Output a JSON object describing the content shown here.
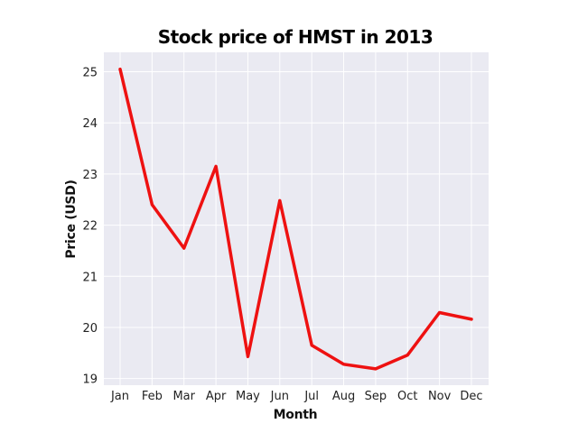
{
  "chart_data": {
    "type": "line",
    "title": "Stock price of HMST in 2013",
    "xlabel": "Month",
    "ylabel": "Price (USD)",
    "categories": [
      "Jan",
      "Feb",
      "Mar",
      "Apr",
      "May",
      "Jun",
      "Jul",
      "Aug",
      "Sep",
      "Oct",
      "Nov",
      "Dec"
    ],
    "series": [
      {
        "values": [
          25.05,
          22.4,
          21.55,
          23.15,
          19.43,
          22.48,
          19.65,
          19.28,
          19.19,
          19.46,
          20.29,
          20.16
        ]
      }
    ],
    "yticks": [
      19,
      20,
      21,
      22,
      23,
      24,
      25
    ],
    "ylim": [
      18.87,
      25.38
    ],
    "grid": true,
    "colors": {
      "line": "#ee1111",
      "plot_background": "#eaeaf2",
      "grid": "#ffffff"
    }
  }
}
